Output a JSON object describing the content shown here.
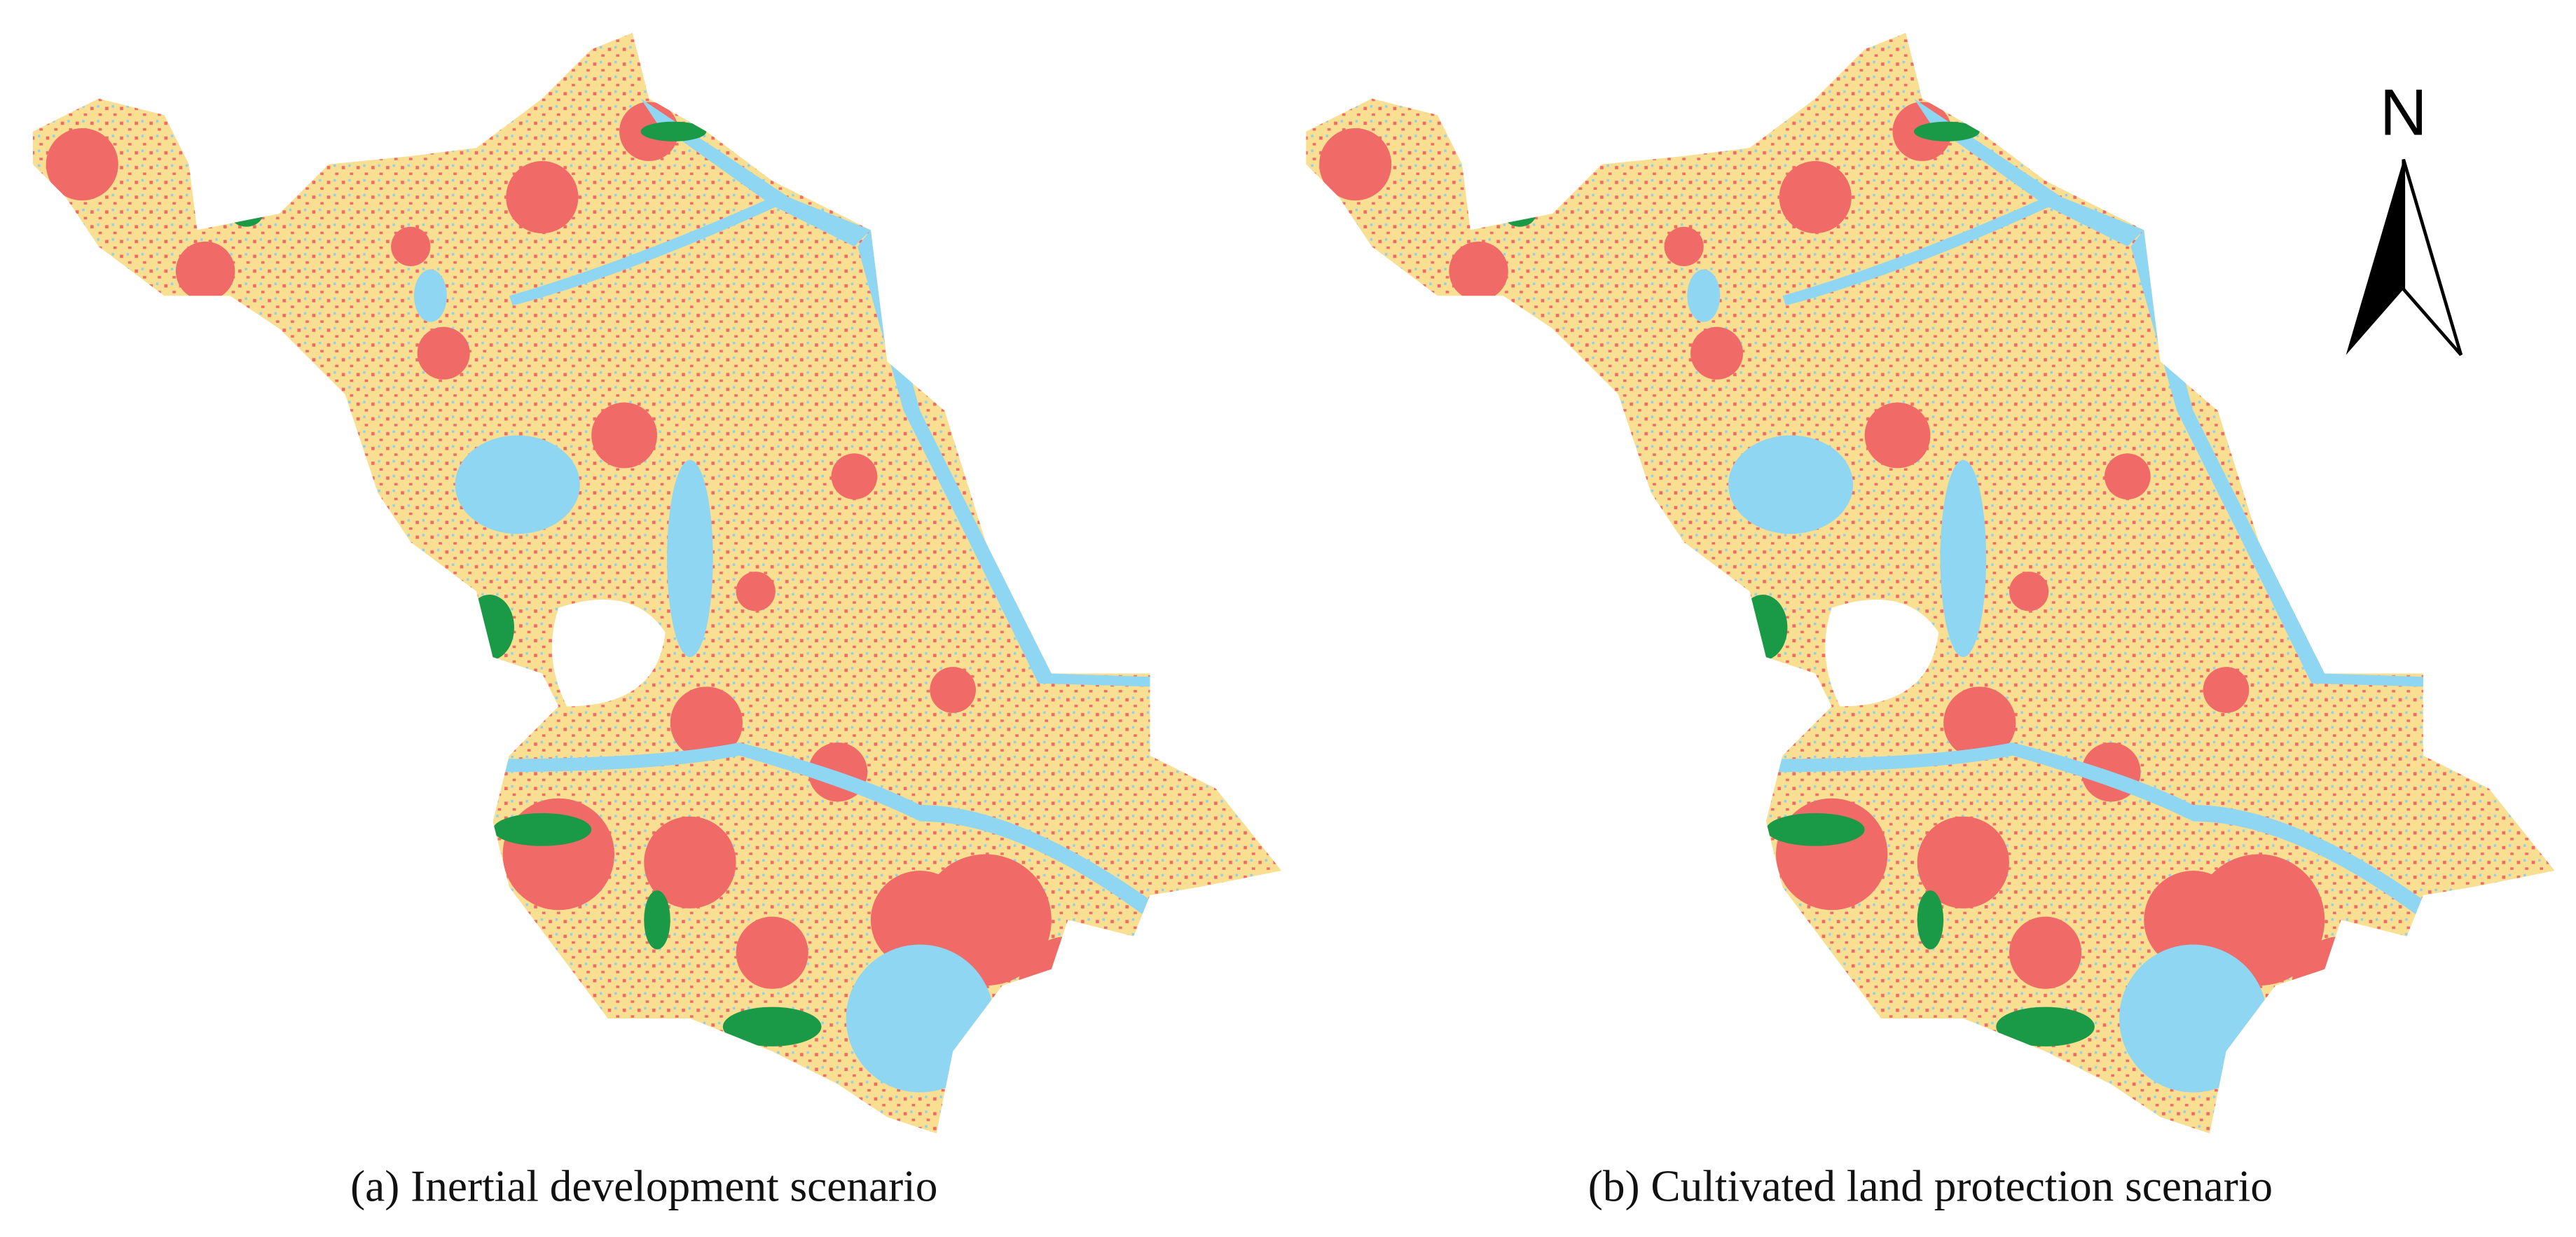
{
  "panels": [
    {
      "caption": "(a) Inertial development scenario"
    },
    {
      "caption": "(b) Cultivated land protection scenario"
    }
  ],
  "north_arrow": {
    "label": "N"
  }
}
